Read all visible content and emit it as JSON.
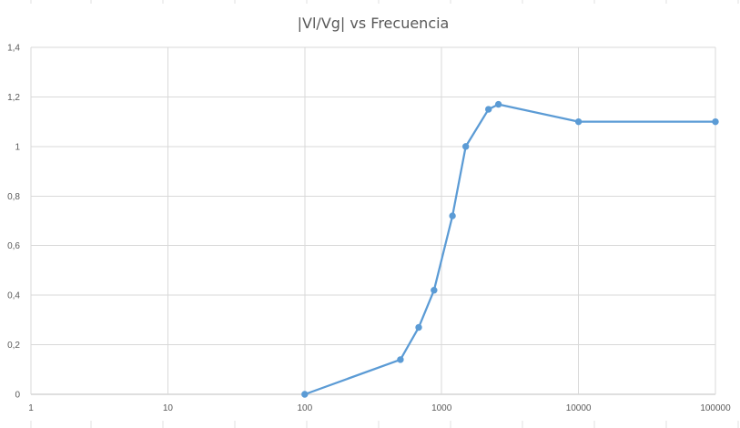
{
  "chart_data": {
    "type": "line",
    "title": "|Vl/Vg| vs Frecuencia",
    "x_scale": "log",
    "xlim": [
      1,
      100000
    ],
    "ylim": [
      0,
      1.4
    ],
    "x_ticks": [
      {
        "value": 1,
        "label": "1"
      },
      {
        "value": 10,
        "label": "10"
      },
      {
        "value": 100,
        "label": "100"
      },
      {
        "value": 1000,
        "label": "1000"
      },
      {
        "value": 10000,
        "label": "10000"
      },
      {
        "value": 100000,
        "label": "100000"
      }
    ],
    "y_ticks": [
      {
        "value": 0,
        "label": "0"
      },
      {
        "value": 0.2,
        "label": "0,2"
      },
      {
        "value": 0.4,
        "label": "0,4"
      },
      {
        "value": 0.6,
        "label": "0,6"
      },
      {
        "value": 0.8,
        "label": "0,8"
      },
      {
        "value": 1.0,
        "label": "1"
      },
      {
        "value": 1.2,
        "label": "1,2"
      },
      {
        "value": 1.4,
        "label": "1,4"
      }
    ],
    "grid": true,
    "legend": false,
    "series": [
      {
        "color": "#5b9bd5",
        "points": [
          {
            "x": 100,
            "y": 0
          },
          {
            "x": 500,
            "y": 0.14
          },
          {
            "x": 680,
            "y": 0.27
          },
          {
            "x": 880,
            "y": 0.42
          },
          {
            "x": 1200,
            "y": 0.72
          },
          {
            "x": 1500,
            "y": 1.0
          },
          {
            "x": 2200,
            "y": 1.15
          },
          {
            "x": 2600,
            "y": 1.17
          },
          {
            "x": 10000,
            "y": 1.1
          },
          {
            "x": 100000,
            "y": 1.1
          }
        ]
      }
    ]
  }
}
